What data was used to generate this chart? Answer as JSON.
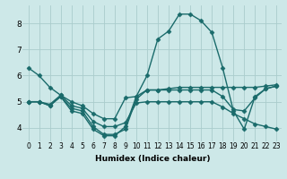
{
  "background_color": "#cde8e8",
  "grid_color": "#aacccc",
  "line_color": "#1a6b6b",
  "marker": "D",
  "markersize": 2.5,
  "linewidth": 1.0,
  "xlabel": "Humidex (Indice chaleur)",
  "xlim": [
    -0.5,
    23.5
  ],
  "ylim": [
    3.5,
    8.7
  ],
  "xticks": [
    0,
    1,
    2,
    3,
    4,
    5,
    6,
    7,
    8,
    9,
    10,
    11,
    12,
    13,
    14,
    15,
    16,
    17,
    18,
    19,
    20,
    21,
    22,
    23
  ],
  "yticks": [
    4,
    5,
    6,
    7,
    8
  ],
  "series": [
    [
      6.3,
      6.0,
      5.55,
      5.25,
      5.0,
      4.85,
      4.55,
      4.35,
      4.35,
      5.15,
      5.2,
      5.45,
      5.45,
      5.5,
      5.55,
      5.55,
      5.55,
      5.55,
      5.55,
      5.55,
      5.55,
      5.55,
      5.6,
      5.65
    ],
    [
      5.0,
      5.0,
      4.9,
      5.25,
      4.85,
      4.75,
      4.25,
      4.05,
      4.05,
      4.2,
      4.95,
      5.0,
      5.0,
      5.0,
      5.0,
      5.0,
      5.0,
      5.0,
      4.8,
      4.55,
      4.35,
      4.15,
      4.05,
      3.95
    ],
    [
      5.0,
      5.0,
      4.85,
      5.2,
      4.75,
      4.65,
      4.05,
      3.75,
      3.75,
      3.95,
      5.1,
      5.45,
      5.45,
      5.45,
      5.45,
      5.45,
      5.45,
      5.45,
      5.2,
      4.7,
      4.65,
      5.15,
      5.5,
      5.6
    ],
    [
      5.0,
      5.0,
      4.85,
      5.2,
      4.65,
      4.55,
      3.95,
      3.7,
      3.7,
      4.05,
      5.2,
      6.0,
      7.4,
      7.7,
      8.35,
      8.35,
      8.1,
      7.65,
      6.3,
      4.65,
      3.95,
      5.2,
      5.5,
      5.6
    ]
  ]
}
